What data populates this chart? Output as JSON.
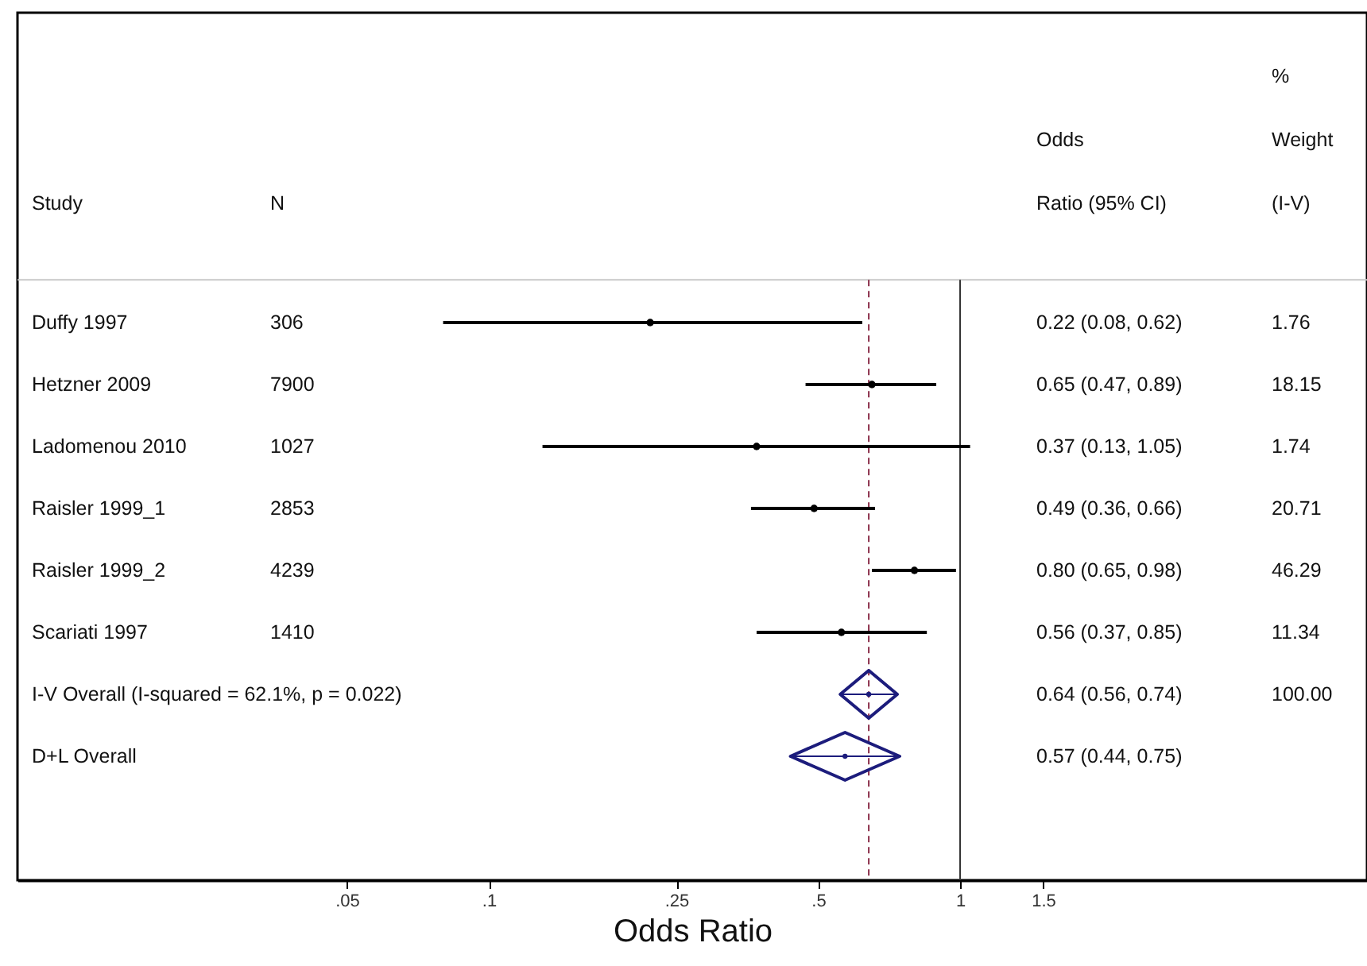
{
  "chart_data": {
    "type": "scatter",
    "orientation": "horizontal",
    "categories": [
      "Duffy 1997",
      "Hetzner 2009",
      "Ladomenou 2010",
      "Raisler 1999_1",
      "Raisler 1999_2",
      "Scariati 1997",
      "I-V Overall  (I-squared = 62.1%, p = 0.022)",
      "D+L Overall"
    ],
    "series": [
      {
        "color": "#000000",
        "marker": "circle",
        "values": [
          0.22,
          0.65,
          0.37,
          0.49,
          0.8,
          0.56,
          null,
          null
        ],
        "errors": [
          [
            0.08,
            0.62
          ],
          [
            0.47,
            0.89
          ],
          [
            0.13,
            1.05
          ],
          [
            0.36,
            0.66
          ],
          [
            0.65,
            0.98
          ],
          [
            0.37,
            0.85
          ],
          null,
          null
        ]
      },
      {
        "color": "#1c1c7c",
        "marker": "diamond",
        "values": [
          null,
          null,
          null,
          null,
          null,
          null,
          0.64,
          0.57
        ],
        "errors": [
          null,
          null,
          null,
          null,
          null,
          null,
          [
            0.56,
            0.74
          ],
          [
            0.44,
            0.75
          ]
        ]
      }
    ],
    "xlabel": "Odds Ratio",
    "log": "x",
    "xlim": [
      0.01,
      7.3
    ],
    "xticks": [
      {
        "value": 0.05,
        "label": ".05"
      },
      {
        "value": 0.1,
        "label": ".1"
      },
      {
        "value": 0.25,
        "label": ".25"
      },
      {
        "value": 0.5,
        "label": ".5"
      },
      1,
      1.5
    ],
    "ref_lines": [
      {
        "axis": "x",
        "value": 1,
        "color": "#333333",
        "line_style": "solid"
      },
      {
        "axis": "x",
        "value": 0.64,
        "color": "#8b2f4a",
        "line_style": "dashed"
      }
    ],
    "annotations": [
      "Study",
      "N",
      "Odds\nRatio (95% CI)",
      "%\nWeight\n(I-V)",
      "306",
      "7900",
      "1027",
      "2853",
      "4239",
      "1410",
      "1.76",
      "18.15",
      "1.74",
      "20.71",
      "46.29",
      "11.34",
      "100.00",
      "0.22 (0.08, 0.62)",
      "0.65 (0.47, 0.89)",
      "0.37 (0.13, 1.05)",
      "0.49 (0.36, 0.66)",
      "0.80 (0.65, 0.98)",
      "0.56 (0.37, 0.85)",
      "0.64 (0.56, 0.74)",
      "0.57 (0.44, 0.75)"
    ],
    "grid": false
  }
}
